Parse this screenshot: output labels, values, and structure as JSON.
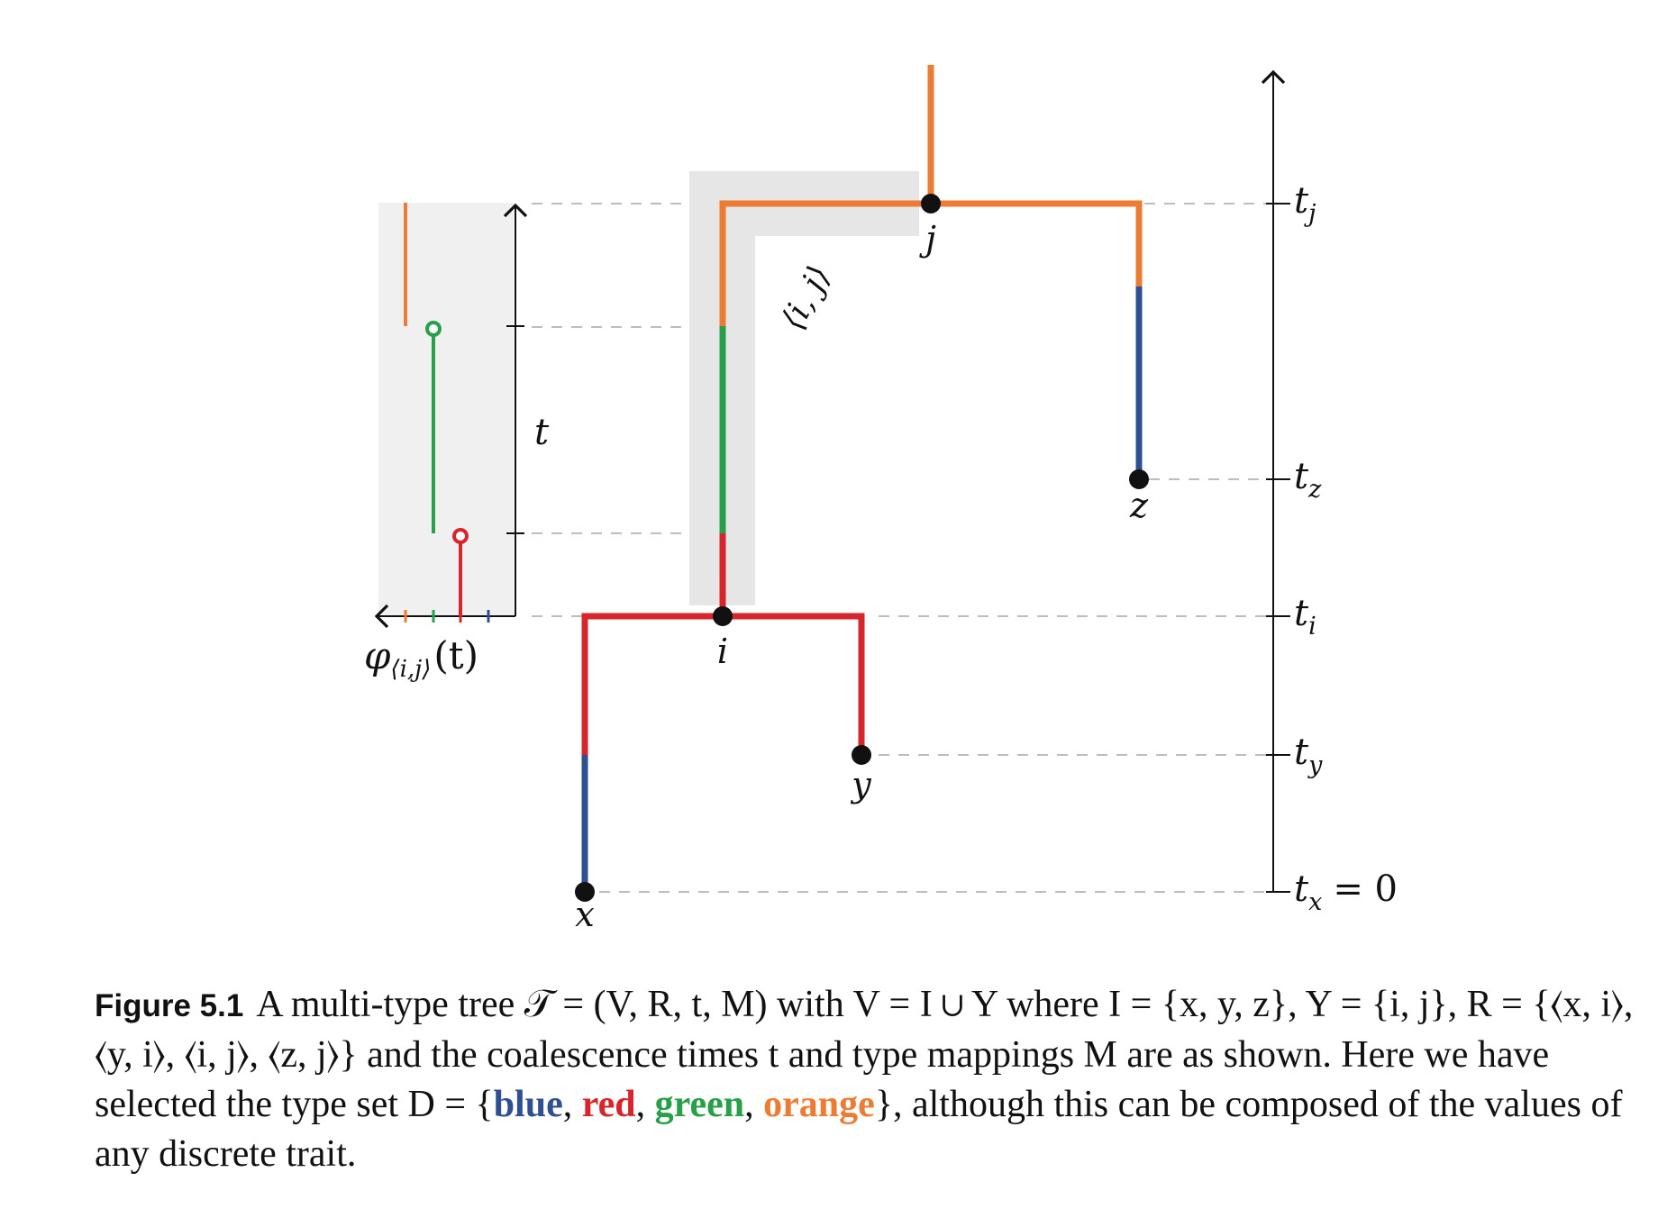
{
  "colors": {
    "blue": "#2f4f93",
    "red": "#d6262c",
    "green": "#28a04a",
    "orange": "#ec7b33",
    "shade": "#e6e6e6",
    "panel": "#f0f0f0",
    "dash": "#bdbdbd",
    "node": "#111111"
  },
  "figure": {
    "nodes": {
      "x": "x",
      "y": "y",
      "z": "z",
      "i": "i",
      "j": "j"
    },
    "edge_label": "⟨i, j⟩",
    "time_axis": {
      "t_j": "t",
      "t_j_sub": "j",
      "t_z": "t",
      "t_z_sub": "z",
      "t_i": "t",
      "t_i_sub": "i",
      "t_y": "t",
      "t_y_sub": "y",
      "t_x": "t",
      "t_x_sub": "x",
      "t_x_suffix": "= 0"
    },
    "panel": {
      "t_label": "t",
      "phi_symbol": "φ",
      "phi_sub": "⟨i,j⟩",
      "phi_arg": "(t)"
    }
  },
  "caption": {
    "label": "Figure 5.1",
    "text_1": "A multi-type tree 𝒯 = (V, R, t, M) with V = I ∪ Y where I = {x, y, z}, Y = {i, j}, R = {⟨x, i⟩, ⟨y, i⟩, ⟨i, j⟩, ⟨z, j⟩} and the coalescence times t and type mappings M are as shown. Here we have selected the type set D = {",
    "blue": "blue",
    "comma_1": ", ",
    "red": "red",
    "comma_2": ", ",
    "green": "green",
    "comma_3": ", ",
    "orange": "orange",
    "text_2": "}, although this can be composed of the values of any discrete trait."
  }
}
